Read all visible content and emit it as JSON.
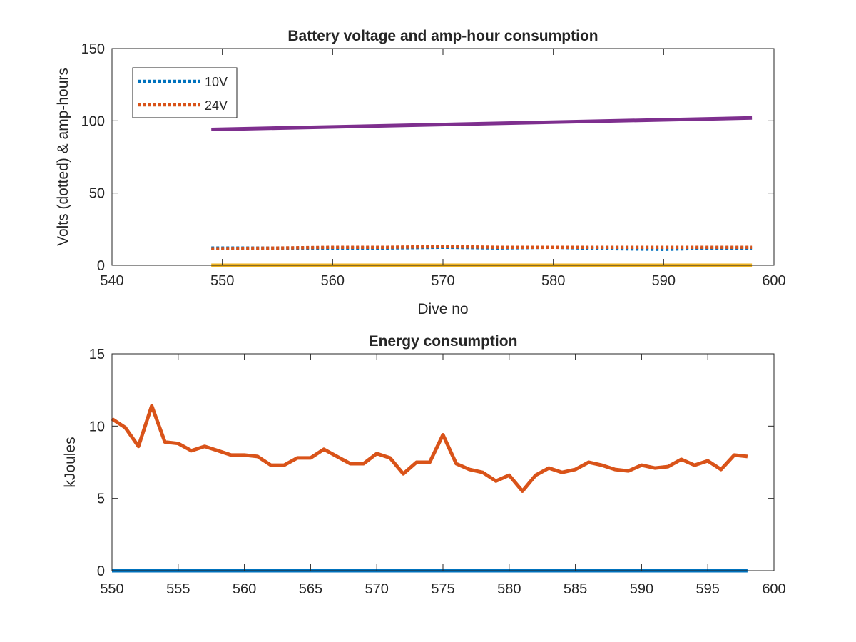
{
  "chart_data": [
    {
      "type": "line",
      "title": "Battery voltage and amp-hour consumption",
      "xlabel": "Dive no",
      "ylabel": "Volts (dotted) & amp-hours",
      "xlim": [
        540,
        600
      ],
      "ylim": [
        0,
        150
      ],
      "xticks": [
        "540",
        "550",
        "560",
        "570",
        "580",
        "590",
        "600"
      ],
      "yticks": [
        "0",
        "50",
        "100",
        "150"
      ],
      "grid": false,
      "legend_position": "top-left",
      "series": [
        {
          "name": "10V",
          "style": "dotted",
          "color": "#0072BD",
          "x": [
            549,
            555,
            560,
            565,
            570,
            575,
            580,
            585,
            590,
            595,
            598
          ],
          "y": [
            12,
            12,
            12,
            12,
            12.5,
            12,
            12.5,
            11.5,
            11,
            12,
            12
          ]
        },
        {
          "name": "24V",
          "style": "dotted",
          "color": "#D95319",
          "x": [
            549,
            555,
            560,
            565,
            570,
            575,
            580,
            585,
            590,
            595,
            598
          ],
          "y": [
            11.5,
            12,
            12.5,
            12.5,
            13,
            12.5,
            12.5,
            12.5,
            12.5,
            12.5,
            12.5
          ]
        },
        {
          "style": "solid",
          "color": "#EDB120",
          "x": [
            549,
            598
          ],
          "y": [
            0,
            0
          ]
        },
        {
          "style": "solid",
          "color": "#7E2F8E",
          "x": [
            549,
            598
          ],
          "y": [
            94,
            102
          ]
        }
      ]
    },
    {
      "type": "line",
      "title": "Energy consumption",
      "xlabel": "",
      "ylabel": "kJoules",
      "xlim": [
        550,
        600
      ],
      "ylim": [
        0,
        15
      ],
      "xticks": [
        "550",
        "555",
        "560",
        "565",
        "570",
        "575",
        "580",
        "585",
        "590",
        "595",
        "600"
      ],
      "yticks": [
        "0",
        "5",
        "10",
        "15"
      ],
      "grid": false,
      "series": [
        {
          "style": "solid",
          "color": "#D95319",
          "x": [
            550,
            551,
            552,
            553,
            554,
            555,
            556,
            557,
            558,
            559,
            560,
            561,
            562,
            563,
            564,
            565,
            566,
            567,
            568,
            569,
            570,
            571,
            572,
            573,
            574,
            575,
            576,
            577,
            578,
            579,
            580,
            581,
            582,
            583,
            584,
            585,
            586,
            587,
            588,
            589,
            590,
            591,
            592,
            593,
            594,
            595,
            596,
            597,
            598
          ],
          "y": [
            10.5,
            9.9,
            8.6,
            11.4,
            8.9,
            8.8,
            8.3,
            8.6,
            8.3,
            8.0,
            8.0,
            7.9,
            7.3,
            7.3,
            7.8,
            7.8,
            8.4,
            7.9,
            7.4,
            7.4,
            8.1,
            7.8,
            6.7,
            7.5,
            7.5,
            9.4,
            7.4,
            7.0,
            6.8,
            6.2,
            6.6,
            5.5,
            6.6,
            7.1,
            6.8,
            7.0,
            7.5,
            7.3,
            7.0,
            6.9,
            7.3,
            7.1,
            7.2,
            7.7,
            7.3,
            7.6,
            7.0,
            8.0,
            7.9
          ]
        },
        {
          "style": "solid",
          "color": "#0072BD",
          "x": [
            550,
            598
          ],
          "y": [
            0,
            0
          ]
        }
      ]
    }
  ]
}
